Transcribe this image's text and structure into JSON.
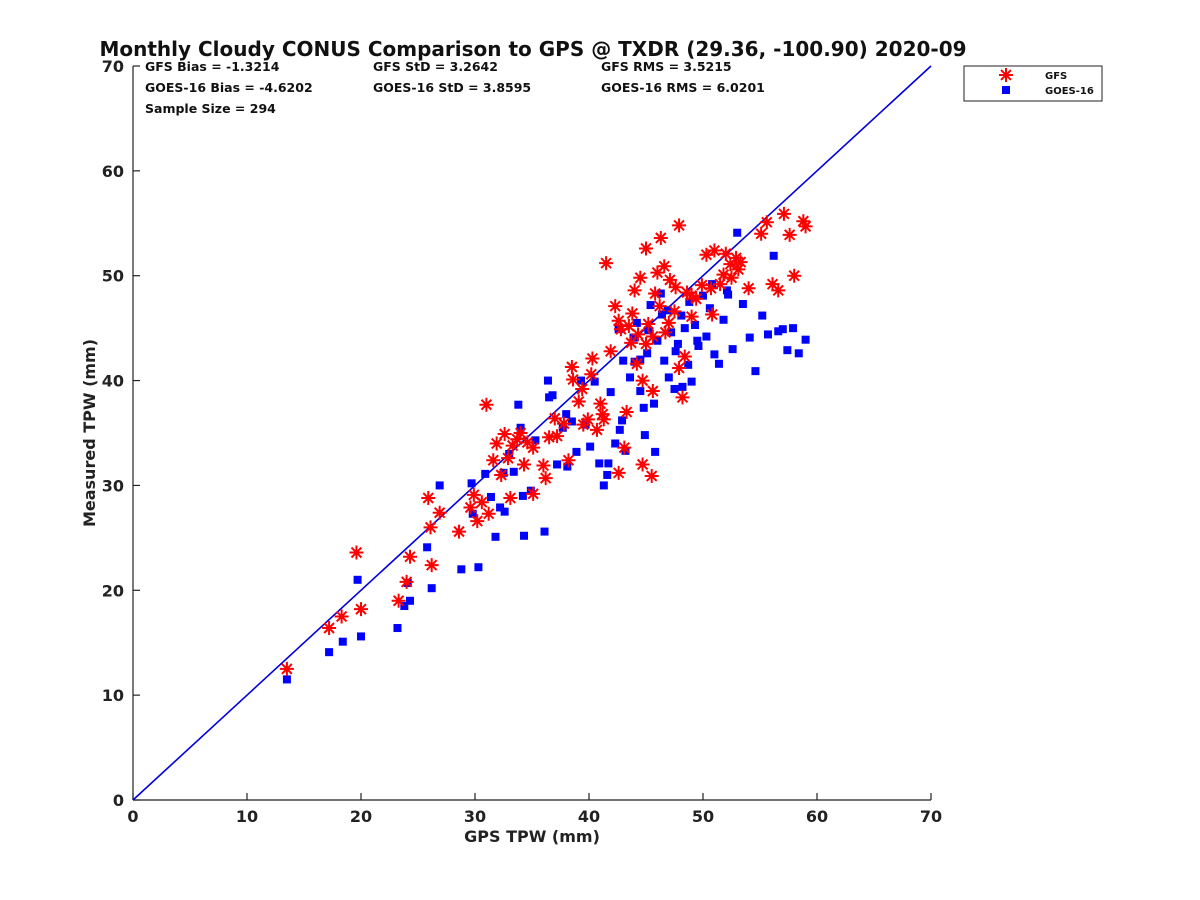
{
  "chart_data": {
    "type": "scatter",
    "title": "Monthly Cloudy CONUS Comparison to GPS @ TXDR (29.36, -100.90) 2020-09",
    "xlabel": "GPS TPW (mm)",
    "ylabel": "Measured TPW (mm)",
    "xlim": [
      0,
      70
    ],
    "ylim": [
      0,
      70
    ],
    "xticks": [
      0,
      10,
      20,
      30,
      40,
      50,
      60,
      70
    ],
    "yticks": [
      0,
      10,
      20,
      30,
      40,
      50,
      60,
      70
    ],
    "grid": false,
    "legend_position": "top-right, outside plot",
    "reference_line": {
      "x": [
        0,
        70
      ],
      "y": [
        0,
        70
      ],
      "color": "#0000dd"
    },
    "stats": {
      "gfs_bias": "GFS Bias = -1.3214",
      "goes_bias": "GOES-16 Bias = -4.6202",
      "sample_size": "Sample Size = 294",
      "gfs_std": "GFS StD = 3.2642",
      "goes_std": "GOES-16 StD = 3.8595",
      "gfs_rms": "GFS RMS = 3.5215",
      "goes_rms": "GOES-16 RMS = 6.0201"
    },
    "series": [
      {
        "name": "GFS",
        "marker": "asterisk",
        "color": "#ff0000",
        "x": [
          13.5,
          17.2,
          18.3,
          19.6,
          20.0,
          23.3,
          24.0,
          24.3,
          25.9,
          26.2,
          26.1,
          26.9,
          28.6,
          29.6,
          30.2,
          30.6,
          31.0,
          31.6,
          31.9,
          32.3,
          32.6,
          32.9,
          33.3,
          33.7,
          34.0,
          34.3,
          34.6,
          35.1,
          36.0,
          36.2,
          36.5,
          37.2,
          37.8,
          38.2,
          38.6,
          39.1,
          39.5,
          39.9,
          40.3,
          40.7,
          41.0,
          41.3,
          41.5,
          41.9,
          42.3,
          42.6,
          42.8,
          43.1,
          43.5,
          43.8,
          44.0,
          44.3,
          44.5,
          44.7,
          45.0,
          45.2,
          45.5,
          45.8,
          46.0,
          46.3,
          46.7,
          47.1,
          47.5,
          47.9,
          48.2,
          48.6,
          49.0,
          49.4,
          49.9,
          50.3,
          50.7,
          51.0,
          51.5,
          52.0,
          52.4,
          52.9,
          53.3,
          54.0,
          55.1,
          55.6,
          56.1,
          56.6,
          57.1,
          57.6,
          58.0,
          58.8,
          59.0,
          47.9,
          44.2,
          42.6,
          45.6,
          40.2,
          38.5,
          35.1,
          33.1,
          29.9,
          31.2,
          43.7,
          45.0,
          46.2,
          47.6,
          49.0,
          50.8,
          51.8,
          52.5,
          53.1,
          45.6,
          47.0,
          48.4,
          44.7,
          46.6,
          41.2,
          43.3,
          39.4,
          37.0
        ],
        "y": [
          12.5,
          16.4,
          17.5,
          23.6,
          18.2,
          19.0,
          20.8,
          23.2,
          28.8,
          22.4,
          26.0,
          27.4,
          25.6,
          27.9,
          26.6,
          28.4,
          37.7,
          32.4,
          34.0,
          31.0,
          34.9,
          32.6,
          33.8,
          34.4,
          35.0,
          32.0,
          34.1,
          29.2,
          31.9,
          30.7,
          34.6,
          34.7,
          35.9,
          32.4,
          40.1,
          38.0,
          35.8,
          36.3,
          42.1,
          35.3,
          37.8,
          36.3,
          51.2,
          42.8,
          47.1,
          45.7,
          44.9,
          33.6,
          45.2,
          46.4,
          48.6,
          44.4,
          49.8,
          32.0,
          52.6,
          45.4,
          30.9,
          48.3,
          50.3,
          53.6,
          44.6,
          49.6,
          46.6,
          54.8,
          38.4,
          48.4,
          46.1,
          47.8,
          49.1,
          52.0,
          48.8,
          52.4,
          49.2,
          52.1,
          51.1,
          51.7,
          51.3,
          48.8,
          54.0,
          55.1,
          49.2,
          48.6,
          55.9,
          53.9,
          50.0,
          55.2,
          54.7,
          41.2,
          41.6,
          31.2,
          39.0,
          40.6,
          41.3,
          33.6,
          28.8,
          29.1,
          27.3,
          43.6,
          43.5,
          47.1,
          48.9,
          48.1,
          46.3,
          50.1,
          49.8,
          50.6,
          44.2,
          45.5,
          42.3,
          40.0,
          50.9,
          36.8,
          37.0,
          39.2,
          36.4
        ]
      },
      {
        "name": "GOES-16",
        "marker": "square",
        "color": "#0000ff",
        "x": [
          13.5,
          17.2,
          18.4,
          19.7,
          20.0,
          23.2,
          23.8,
          24.3,
          24.1,
          25.8,
          26.2,
          26.9,
          28.8,
          29.7,
          29.8,
          30.3,
          30.9,
          31.4,
          31.8,
          32.2,
          32.6,
          33.0,
          33.4,
          33.8,
          34.2,
          34.3,
          34.9,
          35.3,
          36.1,
          36.4,
          36.8,
          37.2,
          37.7,
          38.1,
          38.5,
          38.9,
          39.3,
          39.7,
          40.1,
          40.5,
          40.9,
          41.3,
          41.6,
          41.9,
          42.3,
          42.6,
          42.9,
          43.2,
          43.6,
          43.9,
          44.2,
          44.5,
          44.8,
          45.1,
          45.4,
          45.7,
          46.0,
          46.3,
          46.6,
          46.9,
          47.2,
          47.5,
          47.8,
          48.1,
          48.4,
          48.7,
          49.0,
          49.3,
          49.6,
          50.0,
          50.3,
          50.6,
          51.0,
          51.4,
          51.8,
          52.2,
          52.6,
          53.0,
          53.5,
          54.1,
          54.6,
          55.2,
          55.7,
          56.2,
          56.6,
          57.0,
          57.4,
          57.9,
          58.4,
          59.0,
          41.7,
          43.0,
          44.5,
          45.8,
          47.0,
          48.2,
          49.5,
          50.8,
          52.1,
          45.2,
          46.4,
          47.6,
          48.8,
          44.0,
          42.7,
          38.0,
          36.5,
          34.0,
          32.5,
          44.9
        ],
        "y": [
          11.5,
          14.1,
          15.1,
          21.0,
          15.6,
          16.4,
          18.5,
          19.0,
          20.7,
          24.1,
          20.2,
          30.0,
          22.0,
          30.2,
          27.3,
          22.2,
          31.1,
          28.9,
          25.1,
          27.9,
          27.5,
          33.0,
          31.3,
          37.7,
          29.0,
          25.2,
          29.5,
          34.3,
          25.6,
          40.0,
          38.6,
          32.0,
          35.5,
          31.8,
          36.1,
          33.2,
          40.0,
          35.8,
          33.7,
          39.9,
          32.1,
          30.0,
          31.0,
          38.9,
          34.0,
          44.9,
          36.2,
          33.3,
          40.3,
          44.1,
          45.5,
          42.0,
          37.4,
          42.6,
          47.2,
          37.8,
          43.8,
          48.3,
          41.9,
          46.7,
          44.6,
          39.2,
          43.5,
          46.2,
          45.0,
          41.5,
          39.9,
          45.3,
          43.3,
          48.1,
          44.2,
          46.9,
          42.5,
          41.6,
          45.8,
          48.2,
          43.0,
          54.1,
          47.3,
          44.1,
          40.9,
          46.2,
          44.4,
          51.9,
          44.7,
          44.9,
          42.9,
          45.0,
          42.6,
          43.9,
          32.1,
          41.9,
          39.0,
          33.2,
          40.3,
          39.4,
          43.8,
          49.2,
          48.6,
          44.8,
          46.3,
          42.8,
          47.5,
          41.8,
          35.3,
          36.8,
          38.4,
          35.5,
          31.2,
          34.8
        ]
      }
    ]
  }
}
